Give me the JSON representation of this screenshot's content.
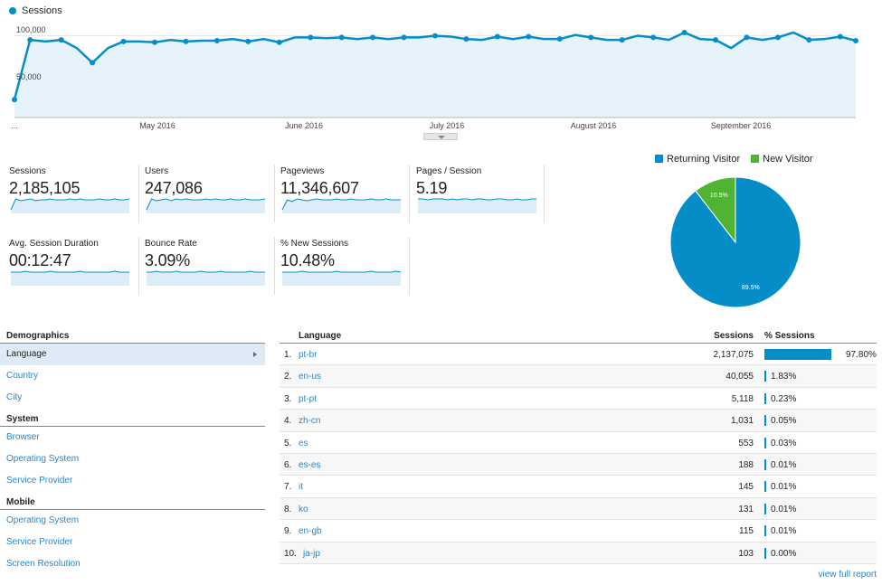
{
  "top_chart": {
    "legend": "Sessions",
    "y_labels": [
      "100,000",
      "50,000"
    ],
    "x_start_label": "...",
    "x_labels": [
      "May 2016",
      "June 2016",
      "July 2016",
      "August 2016",
      "September 2016"
    ],
    "series_color": "#058dc7",
    "fill_color": "#e6f3fa"
  },
  "chart_data": {
    "type": "area",
    "title": "",
    "series": [
      {
        "name": "Sessions",
        "values": [
          22000,
          95000,
          93000,
          95000,
          85000,
          67000,
          85000,
          93000,
          93000,
          92000,
          95000,
          93000,
          94000,
          94000,
          96000,
          93000,
          96000,
          92000,
          98000,
          98000,
          97000,
          98000,
          96000,
          98000,
          96000,
          98000,
          98000,
          100000,
          99000,
          96000,
          95000,
          99000,
          96000,
          99000,
          96000,
          96000,
          101000,
          98000,
          95000,
          95000,
          100000,
          98000,
          95000,
          104000,
          96000,
          95000,
          85000,
          98000,
          95000,
          98000,
          104000,
          95000,
          96000,
          99000,
          94000
        ]
      }
    ],
    "ylim": [
      0,
      115000
    ],
    "x_axis_labels": [
      "...",
      "May 2016",
      "June 2016",
      "July 2016",
      "August 2016",
      "September 2016"
    ],
    "grid": true
  },
  "scorecards": [
    {
      "title": "Sessions",
      "value": "2,185,105"
    },
    {
      "title": "Users",
      "value": "247,086"
    },
    {
      "title": "Pageviews",
      "value": "11,346,607"
    },
    {
      "title": "Pages / Session",
      "value": "5.19"
    },
    {
      "title": "Avg. Session Duration",
      "value": "00:12:47"
    },
    {
      "title": "Bounce Rate",
      "value": "3.09%"
    },
    {
      "title": "% New Sessions",
      "value": "10.48%"
    }
  ],
  "pie": {
    "legend": [
      {
        "label": "Returning Visitor",
        "color": "#058dc7"
      },
      {
        "label": "New Visitor",
        "color": "#50b432"
      }
    ],
    "slices": [
      {
        "label": "89.5%",
        "value": 89.5,
        "color": "#058dc7"
      },
      {
        "label": "10.5%",
        "value": 10.5,
        "color": "#50b432"
      }
    ]
  },
  "menu": {
    "sections": [
      {
        "header": "Demographics",
        "items": [
          "Language",
          "Country",
          "City"
        ],
        "selected": 0
      },
      {
        "header": "System",
        "items": [
          "Browser",
          "Operating System",
          "Service Provider"
        ]
      },
      {
        "header": "Mobile",
        "items": [
          "Operating System",
          "Service Provider",
          "Screen Resolution"
        ]
      }
    ]
  },
  "table": {
    "headers": {
      "language": "Language",
      "sessions": "Sessions",
      "pct": "% Sessions"
    },
    "rows": [
      {
        "idx": "1.",
        "lang": "pt-br",
        "sessions": "2,137,075",
        "pct": "97.80%",
        "share": 97.8
      },
      {
        "idx": "2.",
        "lang": "en-us",
        "sessions": "40,055",
        "pct": "1.83%",
        "share": 1.83
      },
      {
        "idx": "3.",
        "lang": "pt-pt",
        "sessions": "5,118",
        "pct": "0.23%",
        "share": 0.23
      },
      {
        "idx": "4.",
        "lang": "zh-cn",
        "sessions": "1,031",
        "pct": "0.05%",
        "share": 0.05
      },
      {
        "idx": "5.",
        "lang": "es",
        "sessions": "553",
        "pct": "0.03%",
        "share": 0.03
      },
      {
        "idx": "6.",
        "lang": "es-es",
        "sessions": "188",
        "pct": "0.01%",
        "share": 0.01
      },
      {
        "idx": "7.",
        "lang": "it",
        "sessions": "145",
        "pct": "0.01%",
        "share": 0.01
      },
      {
        "idx": "8.",
        "lang": "ko",
        "sessions": "131",
        "pct": "0.01%",
        "share": 0.01
      },
      {
        "idx": "9.",
        "lang": "en-gb",
        "sessions": "115",
        "pct": "0.01%",
        "share": 0.01
      },
      {
        "idx": "10.",
        "lang": "ja-jp",
        "sessions": "103",
        "pct": "0.00%",
        "share": 0.0
      }
    ],
    "view_full": "view full report"
  }
}
